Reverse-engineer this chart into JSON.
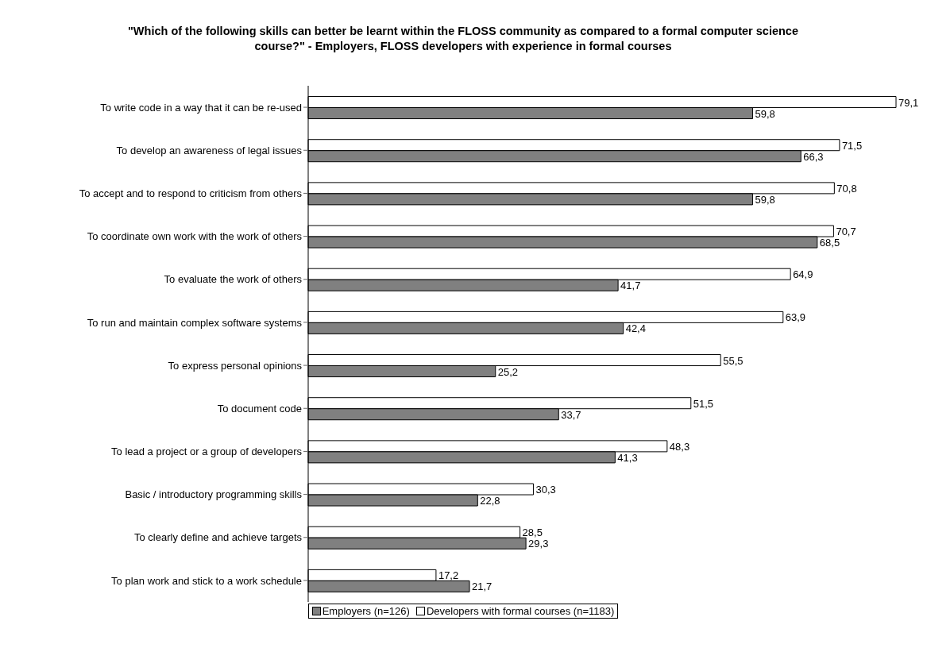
{
  "chart_data": {
    "type": "bar",
    "orientation": "horizontal",
    "title": "\"Which of the following skills can better be learnt within the FLOSS community as compared to a formal computer science course?\" - Employers, FLOSS developers with experience in formal courses",
    "categories": [
      "To write code in a way that it can be re-used",
      "To develop an awareness of legal issues",
      "To accept and to respond to criticism from others",
      "To coordinate own work with the work of others",
      "To evaluate the work of others",
      "To run and maintain complex software systems",
      "To express personal opinions",
      "To document code",
      "To lead a project or a group of developers",
      "Basic / introductory programming skills",
      "To clearly define and achieve targets",
      "To plan work and stick to a work schedule"
    ],
    "series": [
      {
        "name": "Employers (n=126)",
        "color": "#808080",
        "values": [
          59.8,
          66.3,
          59.8,
          68.5,
          41.7,
          42.4,
          25.2,
          33.7,
          41.3,
          22.8,
          29.3,
          21.7
        ],
        "value_labels": [
          "59,8",
          "66,3",
          "59,8",
          "68,5",
          "41,7",
          "42,4",
          "25,2",
          "33,7",
          "41,3",
          "22,8",
          "29,3",
          "21,7"
        ]
      },
      {
        "name": "Developers with formal courses (n=1183)",
        "color": "#ffffff",
        "values": [
          79.1,
          71.5,
          70.8,
          70.7,
          64.9,
          63.9,
          55.5,
          51.5,
          48.3,
          30.3,
          28.5,
          17.2
        ],
        "value_labels": [
          "79,1",
          "71,5",
          "70,8",
          "70,7",
          "64,9",
          "63,9",
          "55,5",
          "51,5",
          "48,3",
          "30,3",
          "28,5",
          "17,2"
        ]
      }
    ],
    "legend": "bottom"
  }
}
